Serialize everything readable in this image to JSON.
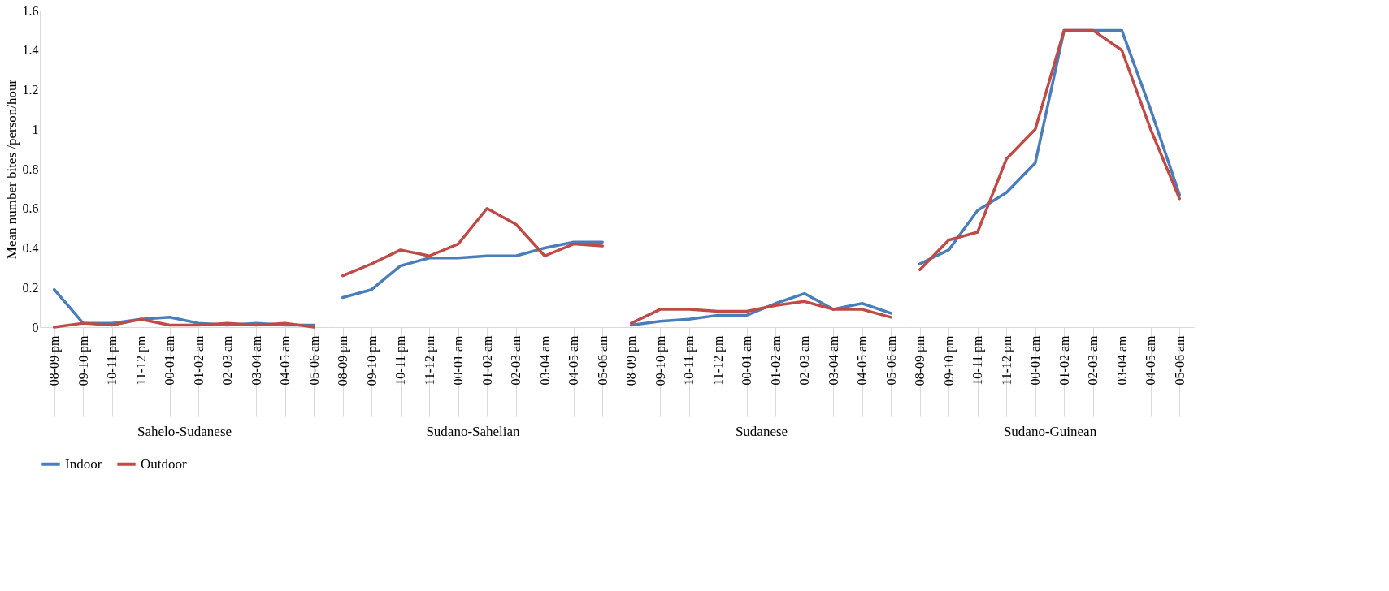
{
  "chart_data": [
    {
      "type": "line",
      "ylabel": "Mean number bites /person/hour",
      "xlabel": "Sahelo-Sudanese",
      "categories": [
        "08-09 pm",
        "09-10 pm",
        "10-11 pm",
        "11-12 pm",
        "00-01 am",
        "01-02 am",
        "02-03 am",
        "03-04 am",
        "04-05 am",
        "05-06 am"
      ],
      "ylim": [
        0,
        1.6
      ],
      "yticks": [
        0,
        0.2,
        0.4,
        0.6,
        0.8,
        1,
        1.2,
        1.4,
        1.6
      ],
      "grid": false,
      "legend": "bottom",
      "series": [
        {
          "name": "Indoor",
          "color": "#4a7ebb",
          "values": [
            0.19,
            0.02,
            0.02,
            0.04,
            0.05,
            0.02,
            0.01,
            0.02,
            0.01,
            0.01
          ]
        },
        {
          "name": "Outdoor",
          "color": "#be4b48",
          "values": [
            0,
            0.02,
            0.01,
            0.04,
            0.01,
            0.01,
            0.02,
            0.01,
            0.02,
            0
          ]
        }
      ]
    },
    {
      "type": "line",
      "xlabel": "Sudano-Sahelian",
      "categories": [
        "08-09 pm",
        "09-10 pm",
        "10-11 pm",
        "11-12 pm",
        "00-01 am",
        "01-02 am",
        "02-03 am",
        "03-04 am",
        "04-05 am",
        "05-06 am"
      ],
      "ylim": [
        0,
        1.6
      ],
      "tick_labels": "x",
      "grid": false,
      "series": [
        {
          "color": "#4a7ebb",
          "values": [
            0.15,
            0.19,
            0.31,
            0.35,
            0.35,
            0.36,
            0.36,
            0.4,
            0.43,
            0.43
          ]
        },
        {
          "color": "#be4b48",
          "values": [
            0.26,
            0.32,
            0.39,
            0.36,
            0.42,
            0.6,
            0.52,
            0.36,
            0.42,
            0.41
          ]
        }
      ]
    },
    {
      "type": "line",
      "xlabel": "Sudanese",
      "categories": [
        "08-09 pm",
        "09-10 pm",
        "10-11 pm",
        "11-12 pm",
        "00-01 am",
        "01-02 am",
        "02-03 am",
        "03-04 am",
        "04-05 am",
        "05-06 am"
      ],
      "ylim": [
        0,
        1.6
      ],
      "tick_labels": "x",
      "grid": false,
      "series": [
        {
          "color": "#4a7ebb",
          "values": [
            0.01,
            0.03,
            0.04,
            0.06,
            0.06,
            0.12,
            0.17,
            0.09,
            0.12,
            0.07
          ]
        },
        {
          "color": "#be4b48",
          "values": [
            0.02,
            0.09,
            0.09,
            0.08,
            0.08,
            0.11,
            0.13,
            0.09,
            0.09,
            0.05
          ]
        }
      ]
    },
    {
      "type": "line",
      "xlabel": "Sudano-Guinean",
      "categories": [
        "08-09 pm",
        "09-10 pm",
        "10-11 pm",
        "11-12 pm",
        "00-01 am",
        "01-02 am",
        "02-03 am",
        "03-04 am",
        "04-05 am",
        "05-06 am"
      ],
      "ylim": [
        0,
        1.6
      ],
      "tick_labels": "x",
      "grid": false,
      "series": [
        {
          "color": "#4a7ebb",
          "values": [
            0.32,
            0.39,
            0.59,
            0.68,
            0.83,
            1.5,
            1.5,
            1.5,
            1.1,
            0.67
          ]
        },
        {
          "color": "#be4b48",
          "values": [
            0.29,
            0.44,
            0.48,
            0.85,
            1.0,
            1.5,
            1.5,
            1.4,
            1.0,
            0.65
          ]
        }
      ]
    }
  ]
}
